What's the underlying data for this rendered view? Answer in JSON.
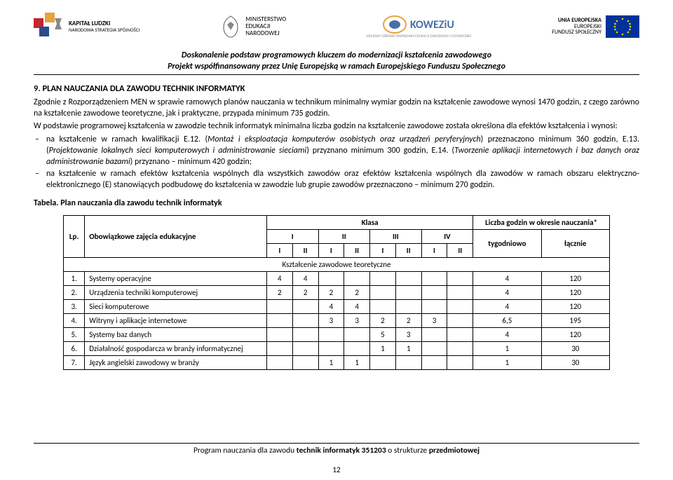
{
  "header": {
    "logo1_line1": "KAPITAŁ LUDZKI",
    "logo1_line2": "NARODOWA STRATEGIA SPÓJNOŚCI",
    "logo2_line1": "MINISTERSTWO",
    "logo2_line2": "EDUKACJI",
    "logo2_line3": "NARODOWEJ",
    "logo3": "KOWEZiU",
    "logo4_line1": "UNIA EUROPEJSKA",
    "logo4_line2": "EUROPEJSKI",
    "logo4_line3": "FUNDUSZ SPOŁECZNY",
    "title1": "Doskonalenie podstaw programowych kluczem do modernizacji kształcenia zawodowego",
    "title2": "Projekt współfinansowany przez Unię Europejską w ramach Europejskiego Funduszu Społecznego"
  },
  "section": {
    "heading": "9. PLAN NAUCZANIA DLA ZAWODU TECHNIK INFORMATYK",
    "para1": "Zgodnie z Rozporządzeniem MEN w sprawie ramowych planów nauczania w technikum minimalny wymiar godzin na kształcenie zawodowe wynosi 1470 godzin, z czego zarówno na kształcenie zawodowe teoretyczne, jak i praktyczne, przypada minimum 735 godzin.",
    "para2": "W podstawie programowej kształcenia w zawodzie technik informatyk minimalna liczba godzin na kształcenie zawodowe została określona dla efektów kształcenia i wynosi:",
    "bullet1": "na kształcenie w ramach kwalifikacji E.12. (Montaż i eksploatacja komputerów osobistych oraz urządzeń peryferyjnych) przeznaczono minimum 360 godzin, E.13. (Projektowanie lokalnych sieci komputerowych i administrowanie sieciami) przyznano minimum 300 godzin, E.14. (Tworzenie aplikacji internetowych i baz danych oraz administrowanie bazami) przyznano – minimum 420 godzin;",
    "bullet2": "na kształcenie w ramach efektów kształcenia wspólnych dla wszystkich zawodów oraz efektów kształcenia wspólnych dla zawodów w ramach obszaru elektryczno-elektronicznego (E) stanowiących podbudowę do kształcenia w zawodzie lub grupie zawodów przeznaczono – minimum 270 godzin."
  },
  "table": {
    "title": "Tabela. Plan nauczania dla zawodu technik informatyk",
    "head": {
      "lp": "Lp.",
      "subject": "Obowiązkowe zajęcia edukacyjne",
      "klasa": "Klasa",
      "klasy": [
        "I",
        "II",
        "III",
        "IV"
      ],
      "sem": [
        "I",
        "II",
        "I",
        "II",
        "I",
        "II",
        "I",
        "II"
      ],
      "liczba": "Liczba godzin w okresie nauczania*",
      "tygodniowo": "tygodniowo",
      "lacznie": "łącznie"
    },
    "section1": "Kształcenie zawodowe teoretyczne",
    "rows": [
      {
        "lp": "1.",
        "name": "Systemy operacyjne",
        "s": [
          "4",
          "4",
          "",
          "",
          "",
          "",
          "",
          ""
        ],
        "tyg": "4",
        "lac": "120"
      },
      {
        "lp": "2.",
        "name": "Urządzenia techniki komputerowej",
        "s": [
          "2",
          "2",
          "2",
          "2",
          "",
          "",
          "",
          ""
        ],
        "tyg": "4",
        "lac": "120"
      },
      {
        "lp": "3.",
        "name": "Sieci komputerowe",
        "s": [
          "",
          "",
          "4",
          "4",
          "",
          "",
          "",
          ""
        ],
        "tyg": "4",
        "lac": "120"
      },
      {
        "lp": "4.",
        "name": "Witryny i aplikacje internetowe",
        "s": [
          "",
          "",
          "3",
          "3",
          "2",
          "2",
          "3",
          ""
        ],
        "tyg": "6,5",
        "lac": "195"
      },
      {
        "lp": "5.",
        "name": "Systemy baz danych",
        "s": [
          "",
          "",
          "",
          "",
          "5",
          "3",
          "",
          ""
        ],
        "tyg": "4",
        "lac": "120"
      },
      {
        "lp": "6.",
        "name": "Działalność gospodarcza w branży informatycznej",
        "s": [
          "",
          "",
          "",
          "",
          "1",
          "1",
          "",
          ""
        ],
        "tyg": "1",
        "lac": "30"
      },
      {
        "lp": "7.",
        "name": "Język angielski zawodowy w branży",
        "s": [
          "",
          "",
          "1",
          "1",
          "",
          "",
          "",
          ""
        ],
        "tyg": "1",
        "lac": "30"
      }
    ]
  },
  "footer": {
    "text_pre": "Program nauczania dla zawodu ",
    "text_bold1": "technik informatyk 351203",
    "text_mid": " o strukturze ",
    "text_bold2": "przedmiotowej",
    "page": "12"
  },
  "colors": {
    "eu_blue": "#003399",
    "eu_gold": "#ffcc00",
    "kl_orange": "#e8a33d",
    "kl_red": "#c1272d",
    "kl_navy": "#2a4b8d",
    "koweziu_blue": "#4a6fa5"
  }
}
